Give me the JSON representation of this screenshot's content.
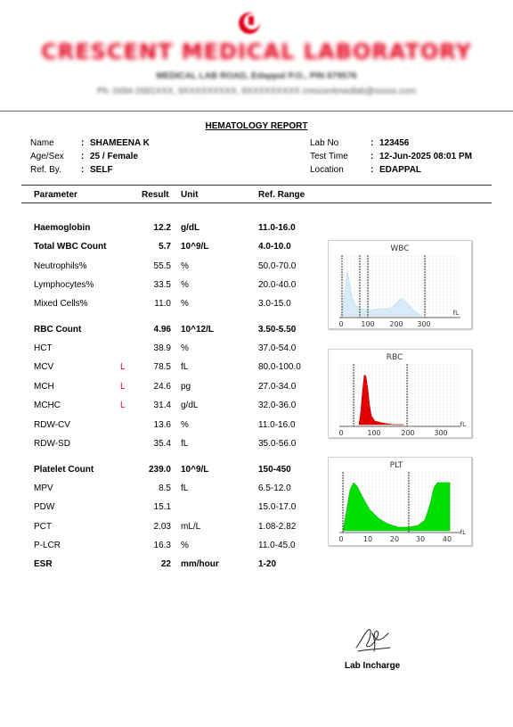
{
  "header": {
    "lab_name": "CRESCENT MEDICAL LABORATORY",
    "address": "MEDICAL LAB ROAD, Edappal P.O., PIN 679576",
    "contact": "Ph: 0494-2681XXX, 9XXXXXXXXX, 9XXXXXXXXX  crescentmedlab@xxxxx.com"
  },
  "report_title": "HEMATOLOGY REPORT",
  "patient": {
    "name_label": "Name",
    "name_value": "SHAMEENA K",
    "agesex_label": "Age/Sex",
    "agesex_value": "25 / Female",
    "refby_label": "Ref. By.",
    "refby_value": "SELF",
    "labno_label": "Lab No",
    "labno_value": "123456",
    "testtime_label": "Test Time",
    "testtime_value": "12-Jun-2025 08:01 PM",
    "location_label": "Location",
    "location_value": "EDAPPAL",
    "colon": ":"
  },
  "table": {
    "headers": [
      "Parameter",
      "Result",
      "Unit",
      "Ref. Range"
    ],
    "rows": [
      {
        "param": "Haemoglobin",
        "flag": "",
        "result": "12.2",
        "unit": "g/dL",
        "range": "11.0-16.0",
        "bold": true
      },
      {
        "param": "Total WBC Count",
        "flag": "",
        "result": "5.7",
        "unit": "10^9/L",
        "range": "4.0-10.0",
        "bold": true
      },
      {
        "param": "Neutrophils%",
        "flag": "",
        "result": "55.5",
        "unit": "%",
        "range": "50.0-70.0",
        "bold": false
      },
      {
        "param": "Lymphocytes%",
        "flag": "",
        "result": "33.5",
        "unit": "%",
        "range": "20.0-40.0",
        "bold": false
      },
      {
        "param": "Mixed Cells%",
        "flag": "",
        "result": "11.0",
        "unit": "%",
        "range": "3.0-15.0",
        "bold": false
      },
      {
        "param": "RBC Count",
        "flag": "",
        "result": "4.96",
        "unit": "10^12/L",
        "range": "3.50-5.50",
        "bold": true
      },
      {
        "param": "HCT",
        "flag": "",
        "result": "38.9",
        "unit": "%",
        "range": "37.0-54.0",
        "bold": false
      },
      {
        "param": "MCV",
        "flag": "L",
        "result": "78.5",
        "unit": "fL",
        "range": "80.0-100.0",
        "bold": false
      },
      {
        "param": "MCH",
        "flag": "L",
        "result": "24.6",
        "unit": "pg",
        "range": "27.0-34.0",
        "bold": false
      },
      {
        "param": "MCHC",
        "flag": "L",
        "result": "31.4",
        "unit": "g/dL",
        "range": "32.0-36.0",
        "bold": false
      },
      {
        "param": "RDW-CV",
        "flag": "",
        "result": "13.6",
        "unit": "%",
        "range": "11.0-16.0",
        "bold": false
      },
      {
        "param": "RDW-SD",
        "flag": "",
        "result": "35.4",
        "unit": "fL",
        "range": "35.0-56.0",
        "bold": false
      },
      {
        "param": "Platelet Count",
        "flag": "",
        "result": "239.0",
        "unit": "10^9/L",
        "range": "150-450",
        "bold": true
      },
      {
        "param": "MPV",
        "flag": "",
        "result": "8.5",
        "unit": "fL",
        "range": "6.5-12.0",
        "bold": false
      },
      {
        "param": "PDW",
        "flag": "",
        "result": "15.1",
        "unit": "",
        "range": "15.0-17.0",
        "bold": false
      },
      {
        "param": "PCT",
        "flag": "",
        "result": "2.03",
        "unit": "mL/L",
        "range": "1.08-2.82",
        "bold": false
      },
      {
        "param": "P-LCR",
        "flag": "",
        "result": "16.3",
        "unit": "%",
        "range": "11.0-45.0",
        "bold": false
      },
      {
        "param": "ESR",
        "flag": "",
        "result": "22",
        "unit": "mm/hour",
        "range": "1-20",
        "bold": true
      }
    ]
  },
  "histograms": {
    "wbc": {
      "title": "WBC",
      "ticks": [
        "0",
        "100",
        "200",
        "300"
      ],
      "unit": "fL",
      "fill": "#d6ebf7"
    },
    "rbc": {
      "title": "RBC",
      "ticks": [
        "0",
        "100",
        "200",
        "300"
      ],
      "unit": "fL",
      "fill": "#e30000"
    },
    "plt": {
      "title": "PLT",
      "ticks": [
        "0",
        "10",
        "20",
        "30",
        "40"
      ],
      "unit": "fL",
      "fill": "#00e000"
    }
  },
  "footer": {
    "incharge": "Lab Incharge"
  }
}
